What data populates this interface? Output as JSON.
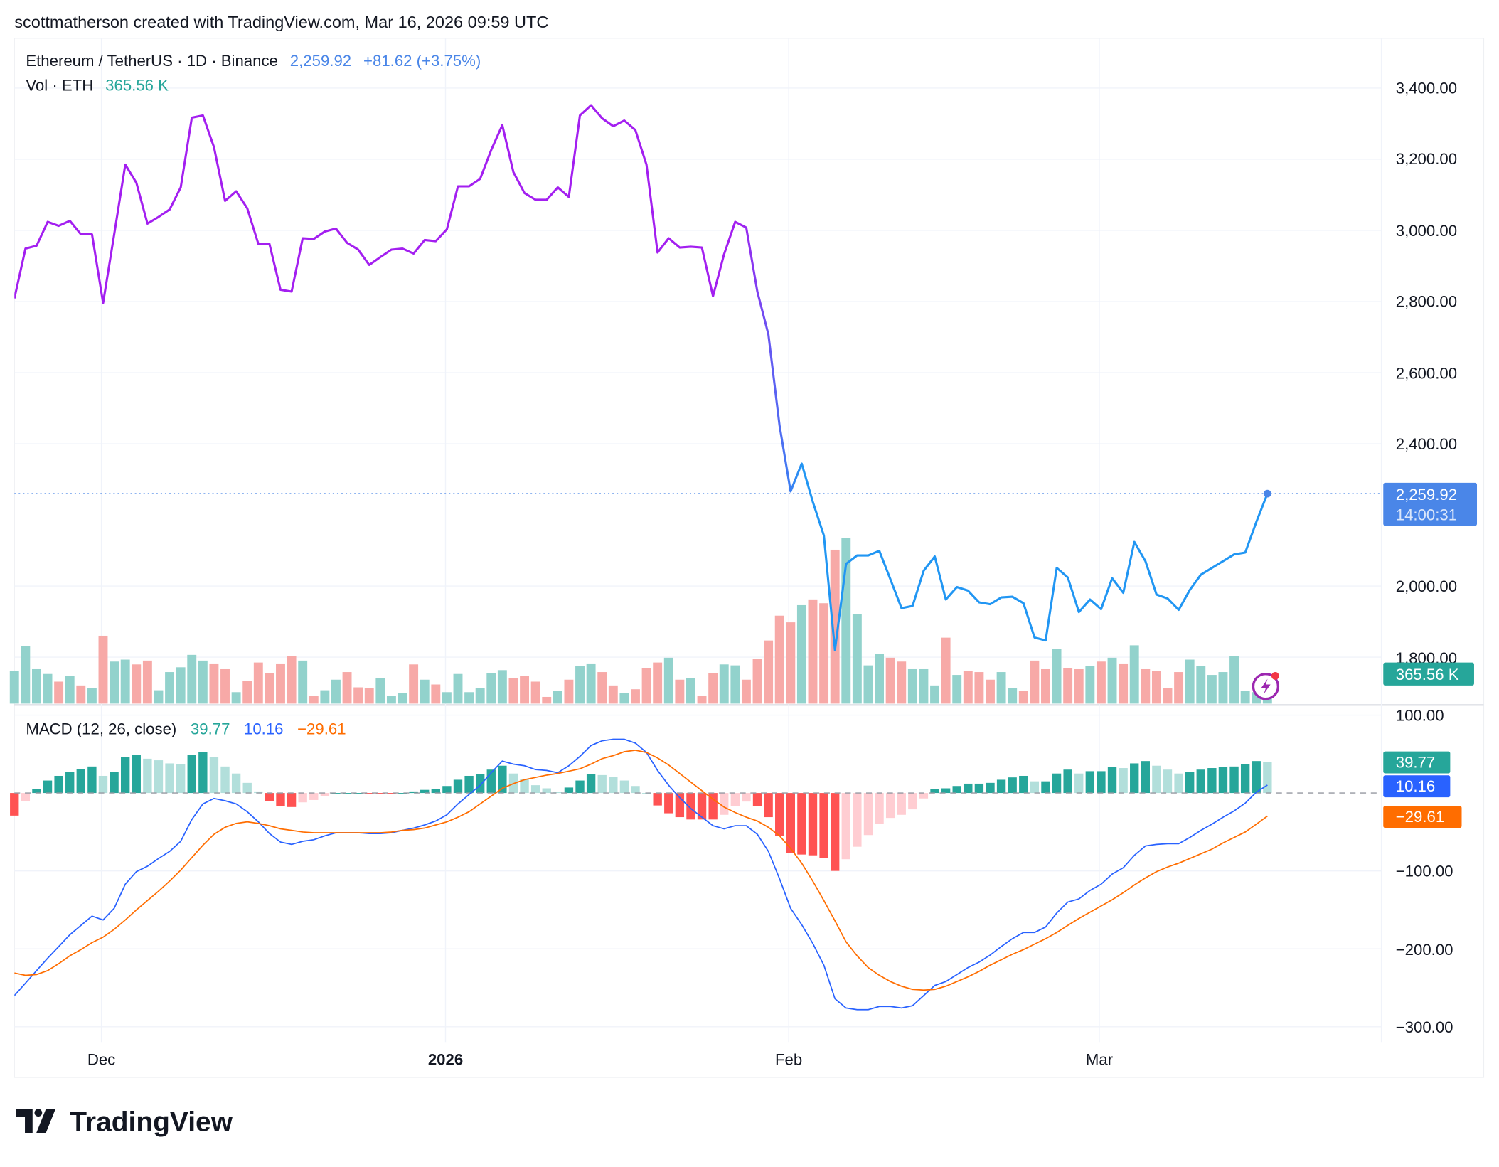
{
  "header": {
    "caption": "scottmatherson created with TradingView.com, Mar 16, 2026 09:59 UTC"
  },
  "legend": {
    "symbol": "Ethereum / TetherUS · 1D · Binance",
    "price": "2,259.92",
    "change": "+81.62 (+3.75%)",
    "vol_label": "Vol · ETH",
    "vol_value": "365.56 K"
  },
  "macd_legend": {
    "label": "MACD (12, 26, close)",
    "histogram": "39.77",
    "macd": "10.16",
    "signal": "−29.61"
  },
  "price_axis": [
    "3,400.00",
    "3,200.00",
    "3,000.00",
    "2,800.00",
    "2,600.00",
    "2,400.00",
    "2,000.00",
    "1,800.00"
  ],
  "macd_axis": [
    "100.00",
    "−100.00",
    "−200.00",
    "−300.00"
  ],
  "time_axis": [
    {
      "label": "Dec",
      "bold": false
    },
    {
      "label": "2026",
      "bold": true
    },
    {
      "label": "Feb",
      "bold": false
    },
    {
      "label": "Mar",
      "bold": false
    }
  ],
  "last_price_tag": {
    "price": "2,259.92",
    "countdown": "14:00:31"
  },
  "volume_tag": "365.56 K",
  "macd_tags": {
    "histogram": "39.77",
    "macd": "10.16",
    "signal": "−29.61"
  },
  "logo": {
    "text": "TradingView"
  },
  "colors": {
    "price_line_start": "#a31ff0",
    "price_line_end": "#2196f3",
    "up_volume": "#92d2cc",
    "down_volume": "#f7a9a7",
    "hist_up_strong": "#26a69a",
    "hist_up_weak": "#b2dfdb",
    "hist_down_strong": "#ff5252",
    "hist_down_weak": "#ffcdd2",
    "macd_line": "#2962ff",
    "signal_line": "#ff6d00",
    "last_price": "#4a86e8",
    "volume_tag": "#26a69a"
  },
  "chart_data": [
    {
      "type": "line",
      "title": "Ethereum / TetherUS · 1D · Binance",
      "x_range": [
        "2025-11-23",
        "2026-03-16"
      ],
      "x_ticks": [
        "Dec",
        "2026",
        "Feb",
        "Mar"
      ],
      "ylim": [
        1700,
        3450
      ],
      "y_ticks": [
        1800,
        2000,
        2400,
        2600,
        2800,
        3000,
        3200,
        3400
      ],
      "grid": true,
      "last_value": 2259.92,
      "close": [
        2809,
        2949,
        2957,
        3024,
        3013,
        3027,
        2989,
        2989,
        2796,
        2989,
        3185,
        3134,
        3019,
        3038,
        3059,
        3121,
        3317,
        3323,
        3234,
        3083,
        3110,
        3062,
        2962,
        2962,
        2833,
        2828,
        2978,
        2976,
        2997,
        3005,
        2965,
        2946,
        2903,
        2925,
        2946,
        2949,
        2935,
        2973,
        2970,
        3003,
        3124,
        3124,
        3145,
        3226,
        3296,
        3164,
        3105,
        3086,
        3086,
        3121,
        3094,
        3323,
        3352,
        3315,
        3293,
        3309,
        3282,
        3185,
        2938,
        2978,
        2952,
        2954,
        2952,
        2815,
        2933,
        3024,
        3008,
        2828,
        2707,
        2452,
        2266,
        2344,
        2237,
        2142,
        1820,
        2062,
        2086,
        2086,
        2099,
        2019,
        1938,
        1944,
        2043,
        2083,
        1962,
        1997,
        1987,
        1954,
        1949,
        1968,
        1970,
        1952,
        1855,
        1847,
        2051,
        2024,
        1927,
        1962,
        1935,
        2022,
        1981,
        2124,
        2070,
        1976,
        1965,
        1933,
        1989,
        2032,
        2051,
        2070,
        2089,
        2094,
        2180,
        2259.92
      ]
    },
    {
      "type": "bar",
      "title": "Vol · ETH",
      "unit": "K",
      "last_value": 365.56,
      "values": [
        887,
        1566,
        940,
        809,
        600,
        757,
        496,
        418,
        1853,
        1148,
        1201,
        1070,
        1175,
        365,
        861,
        992,
        1331,
        1175,
        1096,
        940,
        313,
        626,
        1122,
        835,
        1096,
        1305,
        1175,
        209,
        365,
        653,
        861,
        444,
        418,
        705,
        209,
        287,
        1070,
        653,
        522,
        313,
        809,
        313,
        418,
        835,
        914,
        705,
        757,
        600,
        183,
        339,
        653,
        1018,
        1096,
        861,
        496,
        287,
        392,
        966,
        1122,
        1253,
        653,
        705,
        209,
        835,
        1070,
        1044,
        653,
        1227,
        1723,
        2401,
        2219,
        2688,
        2845,
        2741,
        4202,
        4515,
        2453,
        1044,
        1357,
        1253,
        1148,
        940,
        940,
        496,
        1801,
        783,
        887,
        861,
        653,
        861,
        418,
        339,
        1175,
        940,
        1488,
        966,
        940,
        1018,
        1148,
        1253,
        1096,
        1592,
        940,
        887,
        418,
        861,
        1201,
        1018,
        783,
        861,
        1305,
        339,
        313,
        365.56
      ],
      "direction": [
        1,
        1,
        1,
        1,
        -1,
        1,
        -1,
        1,
        -1,
        1,
        1,
        -1,
        -1,
        1,
        1,
        1,
        1,
        1,
        -1,
        -1,
        1,
        -1,
        -1,
        -1,
        -1,
        -1,
        1,
        -1,
        1,
        1,
        -1,
        -1,
        -1,
        1,
        1,
        1,
        -1,
        1,
        -1,
        1,
        1,
        1,
        1,
        1,
        1,
        -1,
        -1,
        -1,
        -1,
        1,
        -1,
        1,
        1,
        -1,
        -1,
        1,
        -1,
        -1,
        -1,
        1,
        -1,
        1,
        -1,
        -1,
        1,
        1,
        -1,
        -1,
        -1,
        -1,
        -1,
        1,
        -1,
        -1,
        -1,
        1,
        1,
        1,
        1,
        -1,
        -1,
        1,
        1,
        1,
        -1,
        1,
        -1,
        -1,
        -1,
        1,
        1,
        -1,
        -1,
        -1,
        1,
        -1,
        -1,
        1,
        -1,
        1,
        -1,
        1,
        -1,
        -1,
        -1,
        -1,
        1,
        1,
        1,
        1,
        1,
        1,
        1,
        1
      ]
    },
    {
      "type": "line",
      "title": "MACD (12, 26, close)",
      "ylim": [
        -330,
        110
      ],
      "y_ticks": [
        100,
        -100,
        -200,
        -300
      ],
      "grid": true,
      "series": [
        {
          "name": "MACD",
          "values": [
            -260,
            -244,
            -228,
            -212,
            -197,
            -182,
            -170,
            -158,
            -163,
            -148,
            -117,
            -101,
            -94,
            -84,
            -75,
            -62,
            -34,
            -14,
            -7,
            -10,
            -14,
            -24,
            -37,
            -52,
            -63,
            -66,
            -62,
            -60,
            -55,
            -51,
            -51,
            -51,
            -52,
            -52,
            -51,
            -48,
            -45,
            -41,
            -36,
            -28,
            -14,
            -2,
            10,
            26,
            41,
            37,
            35,
            30,
            29,
            26,
            35,
            47,
            61,
            67,
            69,
            69,
            64,
            52,
            29,
            10,
            -6,
            -20,
            -31,
            -42,
            -46,
            -42,
            -42,
            -53,
            -75,
            -110,
            -148,
            -169,
            -193,
            -221,
            -264,
            -276,
            -278,
            -278,
            -274,
            -274,
            -276,
            -273,
            -260,
            -247,
            -242,
            -233,
            -224,
            -217,
            -208,
            -197,
            -187,
            -179,
            -179,
            -172,
            -154,
            -140,
            -136,
            -125,
            -117,
            -104,
            -96,
            -80,
            -68,
            -66,
            -65,
            -65,
            -57,
            -48,
            -40,
            -31,
            -23,
            -13,
            1,
            10.16
          ]
        },
        {
          "name": "Signal",
          "values": [
            -231,
            -234,
            -233,
            -228,
            -219,
            -209,
            -201,
            -192,
            -185,
            -175,
            -163,
            -150,
            -138,
            -126,
            -113,
            -99,
            -83,
            -67,
            -53,
            -44,
            -39,
            -37,
            -39,
            -42,
            -46,
            -48,
            -50,
            -51,
            -51,
            -51,
            -51,
            -51,
            -51,
            -51,
            -50,
            -48,
            -47,
            -45,
            -41,
            -37,
            -31,
            -24,
            -14,
            -4,
            6,
            12,
            17,
            20,
            23,
            25,
            28,
            31,
            37,
            44,
            48,
            53,
            55,
            52,
            45,
            36,
            25,
            14,
            3,
            -8,
            -18,
            -25,
            -31,
            -36,
            -44,
            -55,
            -71,
            -90,
            -113,
            -138,
            -164,
            -191,
            -209,
            -224,
            -234,
            -242,
            -248,
            -252,
            -253,
            -252,
            -248,
            -242,
            -236,
            -229,
            -221,
            -214,
            -207,
            -201,
            -194,
            -187,
            -179,
            -170,
            -161,
            -153,
            -145,
            -137,
            -128,
            -118,
            -109,
            -101,
            -95,
            -90,
            -84,
            -78,
            -72,
            -64,
            -57,
            -50,
            -40,
            -29.61
          ]
        }
      ],
      "histogram_last": 39.77
    }
  ]
}
